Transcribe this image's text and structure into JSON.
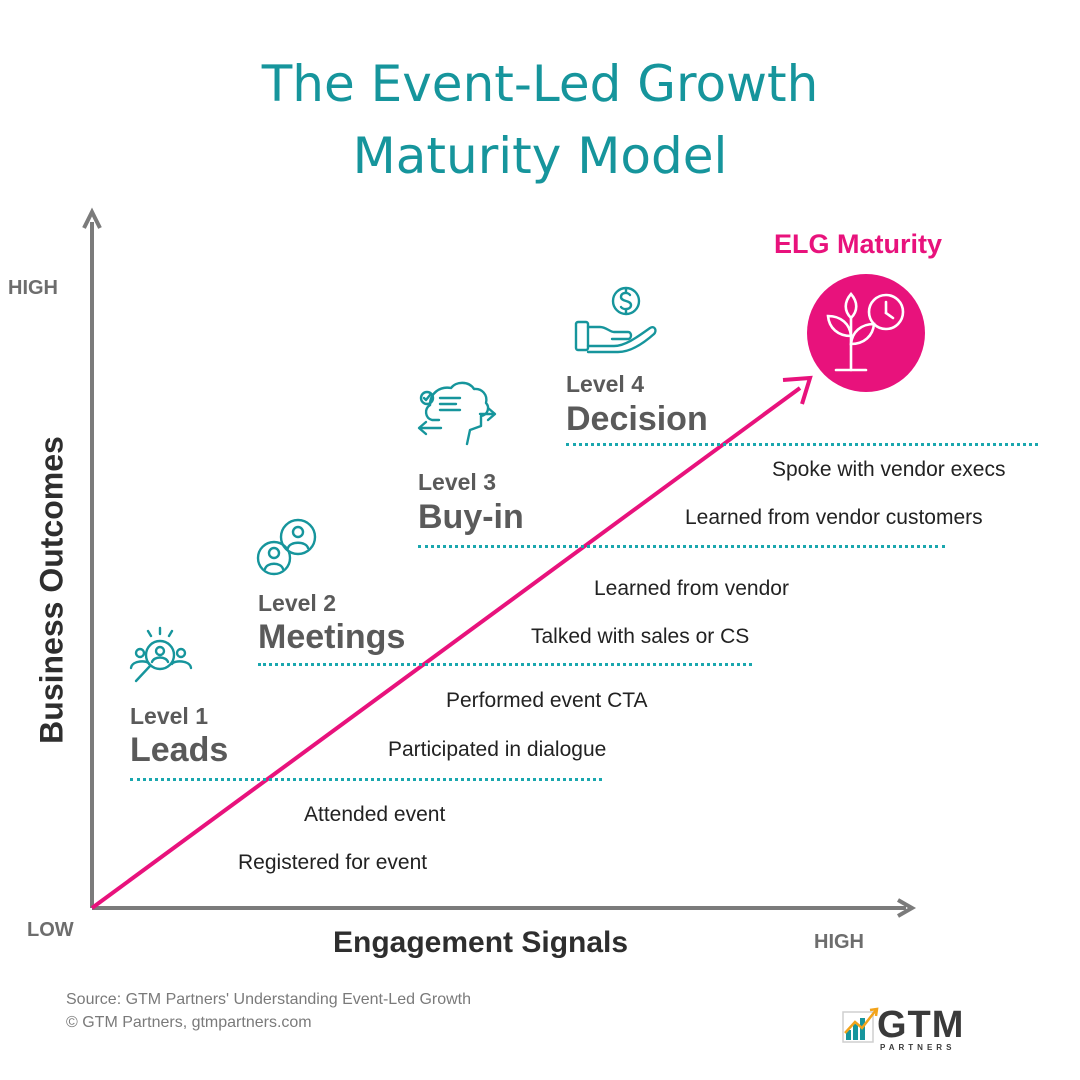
{
  "title": {
    "line1": "The Event-Led Growth",
    "line2": "Maturity Model"
  },
  "axes": {
    "y_label": "Business Outcomes",
    "x_label": "Engagement Signals",
    "y_high": "HIGH",
    "low": "LOW",
    "x_high": "HIGH"
  },
  "levels": [
    {
      "number_label": "Level 1",
      "name": "Leads",
      "icon": "magnifier-people-icon"
    },
    {
      "number_label": "Level 2",
      "name": "Meetings",
      "icon": "people-circles-icon"
    },
    {
      "number_label": "Level 3",
      "name": "Buy-in",
      "icon": "head-gears-arrows-icon"
    },
    {
      "number_label": "Level 4",
      "name": "Decision",
      "icon": "hand-dollar-icon"
    }
  ],
  "signals": [
    "Registered for event",
    "Attended event",
    "Participated in dialogue",
    "Performed event CTA",
    "Talked with sales or CS",
    "Learned from vendor",
    "Learned from vendor customers",
    "Spoke with vendor execs"
  ],
  "maturity": {
    "label": "ELG Maturity",
    "icon": "plant-clock-icon",
    "color": "#e8127c"
  },
  "colors": {
    "teal": "#16959c",
    "pink": "#e8127c",
    "axis": "#7b7b7b"
  },
  "source": {
    "line1": "Source: GTM Partners' Understanding Event-Led Growth",
    "line2": "© GTM Partners, gtmpartners.com"
  },
  "logo": {
    "text": "GTM",
    "sub": "PARTNERS",
    "icon": "chart-bars-icon"
  }
}
